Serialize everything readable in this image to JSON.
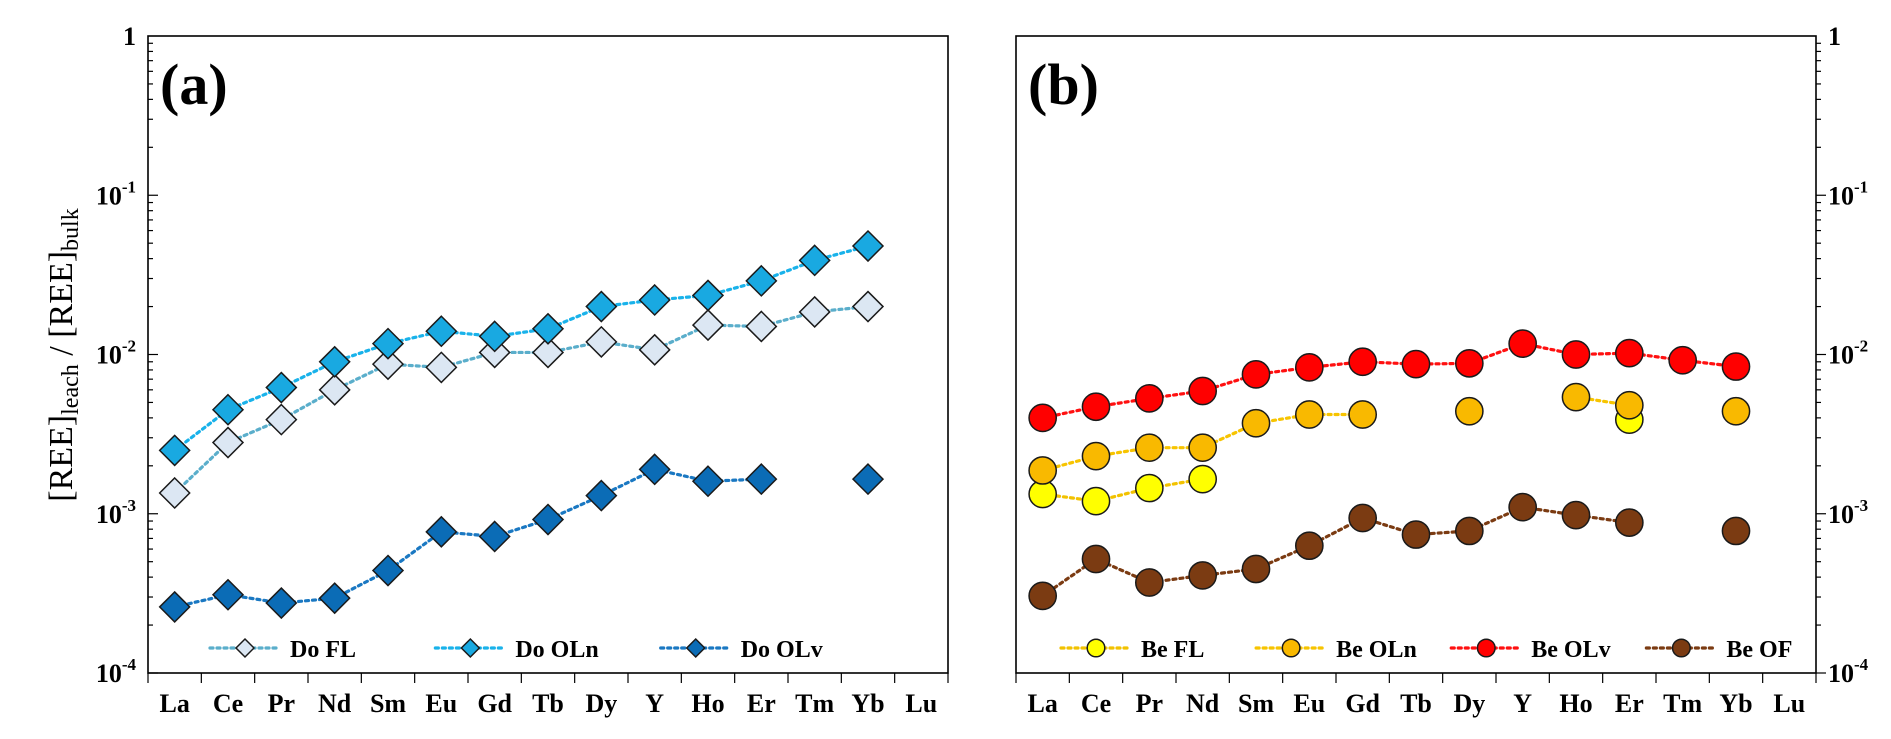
{
  "chart_data": [
    {
      "type": "line",
      "panel_label": "(a)",
      "ylabel": {
        "main1": "[REE]",
        "sub1": "leach",
        "sep": " / ",
        "main2": "[REE]",
        "sub2": "bulk"
      },
      "yscale": "log",
      "ylim": [
        0.0001,
        1
      ],
      "yticks": [
        {
          "base": "10",
          "exp": "-4",
          "v": 0.0001
        },
        {
          "base": "10",
          "exp": "-3",
          "v": 0.001
        },
        {
          "base": "10",
          "exp": "-2",
          "v": 0.01
        },
        {
          "base": "10",
          "exp": "-1",
          "v": 0.1
        },
        {
          "base": "1",
          "exp": "",
          "v": 1
        }
      ],
      "yaxis_side": "left",
      "categories": [
        "La",
        "Ce",
        "Pr",
        "Nd",
        "Sm",
        "Eu",
        "Gd",
        "Tb",
        "Dy",
        "Y",
        "Ho",
        "Er",
        "Tm",
        "Yb",
        "Lu"
      ],
      "legend_position": "bottom",
      "series": [
        {
          "name": "Do FL",
          "marker": "diamond",
          "fill": "#dce7f3",
          "line": "#5aaecb",
          "values": [
            0.00135,
            0.0028,
            0.0039,
            0.006,
            0.0087,
            0.0083,
            0.0103,
            0.0103,
            0.012,
            0.0107,
            0.0153,
            0.015,
            0.0185,
            0.02,
            null
          ]
        },
        {
          "name": "Do OLn",
          "marker": "diamond",
          "fill": "#19a9e1",
          "line": "#19b2ea",
          "values": [
            0.0025,
            0.0045,
            0.0062,
            0.009,
            0.0117,
            0.014,
            0.013,
            0.0145,
            0.02,
            0.022,
            0.0235,
            0.029,
            0.039,
            0.048,
            null
          ]
        },
        {
          "name": "Do OLv",
          "marker": "diamond",
          "fill": "#0b6cb6",
          "line": "#1a78c2",
          "values": [
            0.00026,
            0.00031,
            0.000275,
            0.000295,
            0.00044,
            0.00077,
            0.00072,
            0.00092,
            0.0013,
            0.0019,
            0.0016,
            0.00165,
            null,
            0.00165,
            null
          ]
        }
      ]
    },
    {
      "type": "line",
      "panel_label": "(b)",
      "yscale": "log",
      "ylim": [
        0.0001,
        1
      ],
      "yticks": [
        {
          "base": "10",
          "exp": "-4",
          "v": 0.0001
        },
        {
          "base": "10",
          "exp": "-3",
          "v": 0.001
        },
        {
          "base": "10",
          "exp": "-2",
          "v": 0.01
        },
        {
          "base": "10",
          "exp": "-1",
          "v": 0.1
        },
        {
          "base": "1",
          "exp": "",
          "v": 1
        }
      ],
      "yaxis_side": "right",
      "categories": [
        "La",
        "Ce",
        "Pr",
        "Nd",
        "Sm",
        "Eu",
        "Gd",
        "Tb",
        "Dy",
        "Y",
        "Ho",
        "Er",
        "Tm",
        "Yb",
        "Lu"
      ],
      "legend_position": "bottom",
      "series": [
        {
          "name": "Be FL",
          "marker": "circle",
          "fill": "#ffff00",
          "line": "#f2c200",
          "values": [
            0.00133,
            0.0012,
            0.00145,
            0.00165,
            null,
            null,
            null,
            null,
            null,
            null,
            null,
            0.0039,
            null,
            null,
            null
          ]
        },
        {
          "name": "Be OLn",
          "marker": "circle",
          "fill": "#f9b900",
          "line": "#f7c400",
          "values": [
            0.00187,
            0.0023,
            0.0026,
            0.0026,
            0.0037,
            0.0042,
            0.0042,
            null,
            0.0044,
            null,
            0.0054,
            0.0048,
            null,
            0.0044,
            null
          ]
        },
        {
          "name": "Be OLv",
          "marker": "circle",
          "fill": "#ff0000",
          "line": "#ff1010",
          "values": [
            0.004,
            0.0047,
            0.0053,
            0.0059,
            0.0075,
            0.0083,
            0.009,
            0.0087,
            0.0088,
            0.0117,
            0.01,
            0.0102,
            0.0092,
            0.0084,
            null
          ]
        },
        {
          "name": "Be OF",
          "marker": "circle",
          "fill": "#7b3b12",
          "line": "#7b3b12",
          "values": [
            0.000305,
            0.00052,
            0.00037,
            0.00041,
            0.00045,
            0.00063,
            0.00094,
            0.00074,
            0.00078,
            0.0011,
            0.00098,
            0.00088,
            null,
            0.00078,
            null
          ]
        }
      ]
    }
  ]
}
